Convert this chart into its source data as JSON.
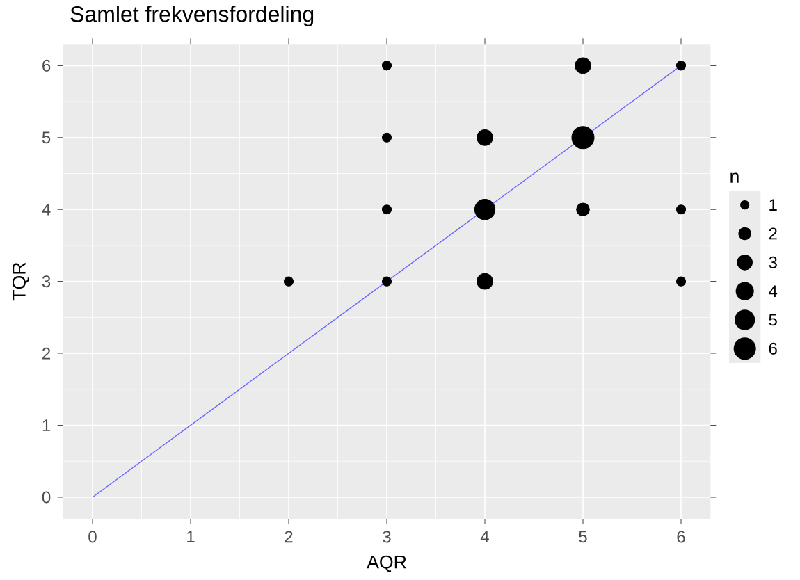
{
  "chart_data": {
    "type": "bubble",
    "title": "Samlet frekvensfordeling",
    "xlabel": "AQR",
    "ylabel": "TQR",
    "legend_title": "n",
    "series": [
      {
        "color": "#000000",
        "x": [
          2,
          3,
          3,
          3,
          3,
          4,
          4,
          4,
          5,
          5,
          5,
          6,
          6,
          6
        ],
        "values": [
          3,
          3,
          4,
          5,
          6,
          3,
          4,
          5,
          4,
          5,
          6,
          3,
          4,
          6
        ],
        "sizes": [
          1,
          1,
          1,
          1,
          1,
          3,
          5,
          3,
          2,
          6,
          3,
          1,
          1,
          1
        ]
      },
      {
        "type": "line",
        "color": "#6666ff",
        "x": [
          0,
          6
        ],
        "values": [
          0,
          6
        ]
      }
    ],
    "size_legend": [
      1,
      2,
      3,
      4,
      5,
      6
    ],
    "xlim": [
      -0.3,
      6.3
    ],
    "ylim": [
      -0.3,
      6.3
    ],
    "xticks": [
      0,
      1,
      2,
      3,
      4,
      5,
      6
    ],
    "yticks": [
      0,
      1,
      2,
      3,
      4,
      5,
      6
    ],
    "grid": true
  }
}
